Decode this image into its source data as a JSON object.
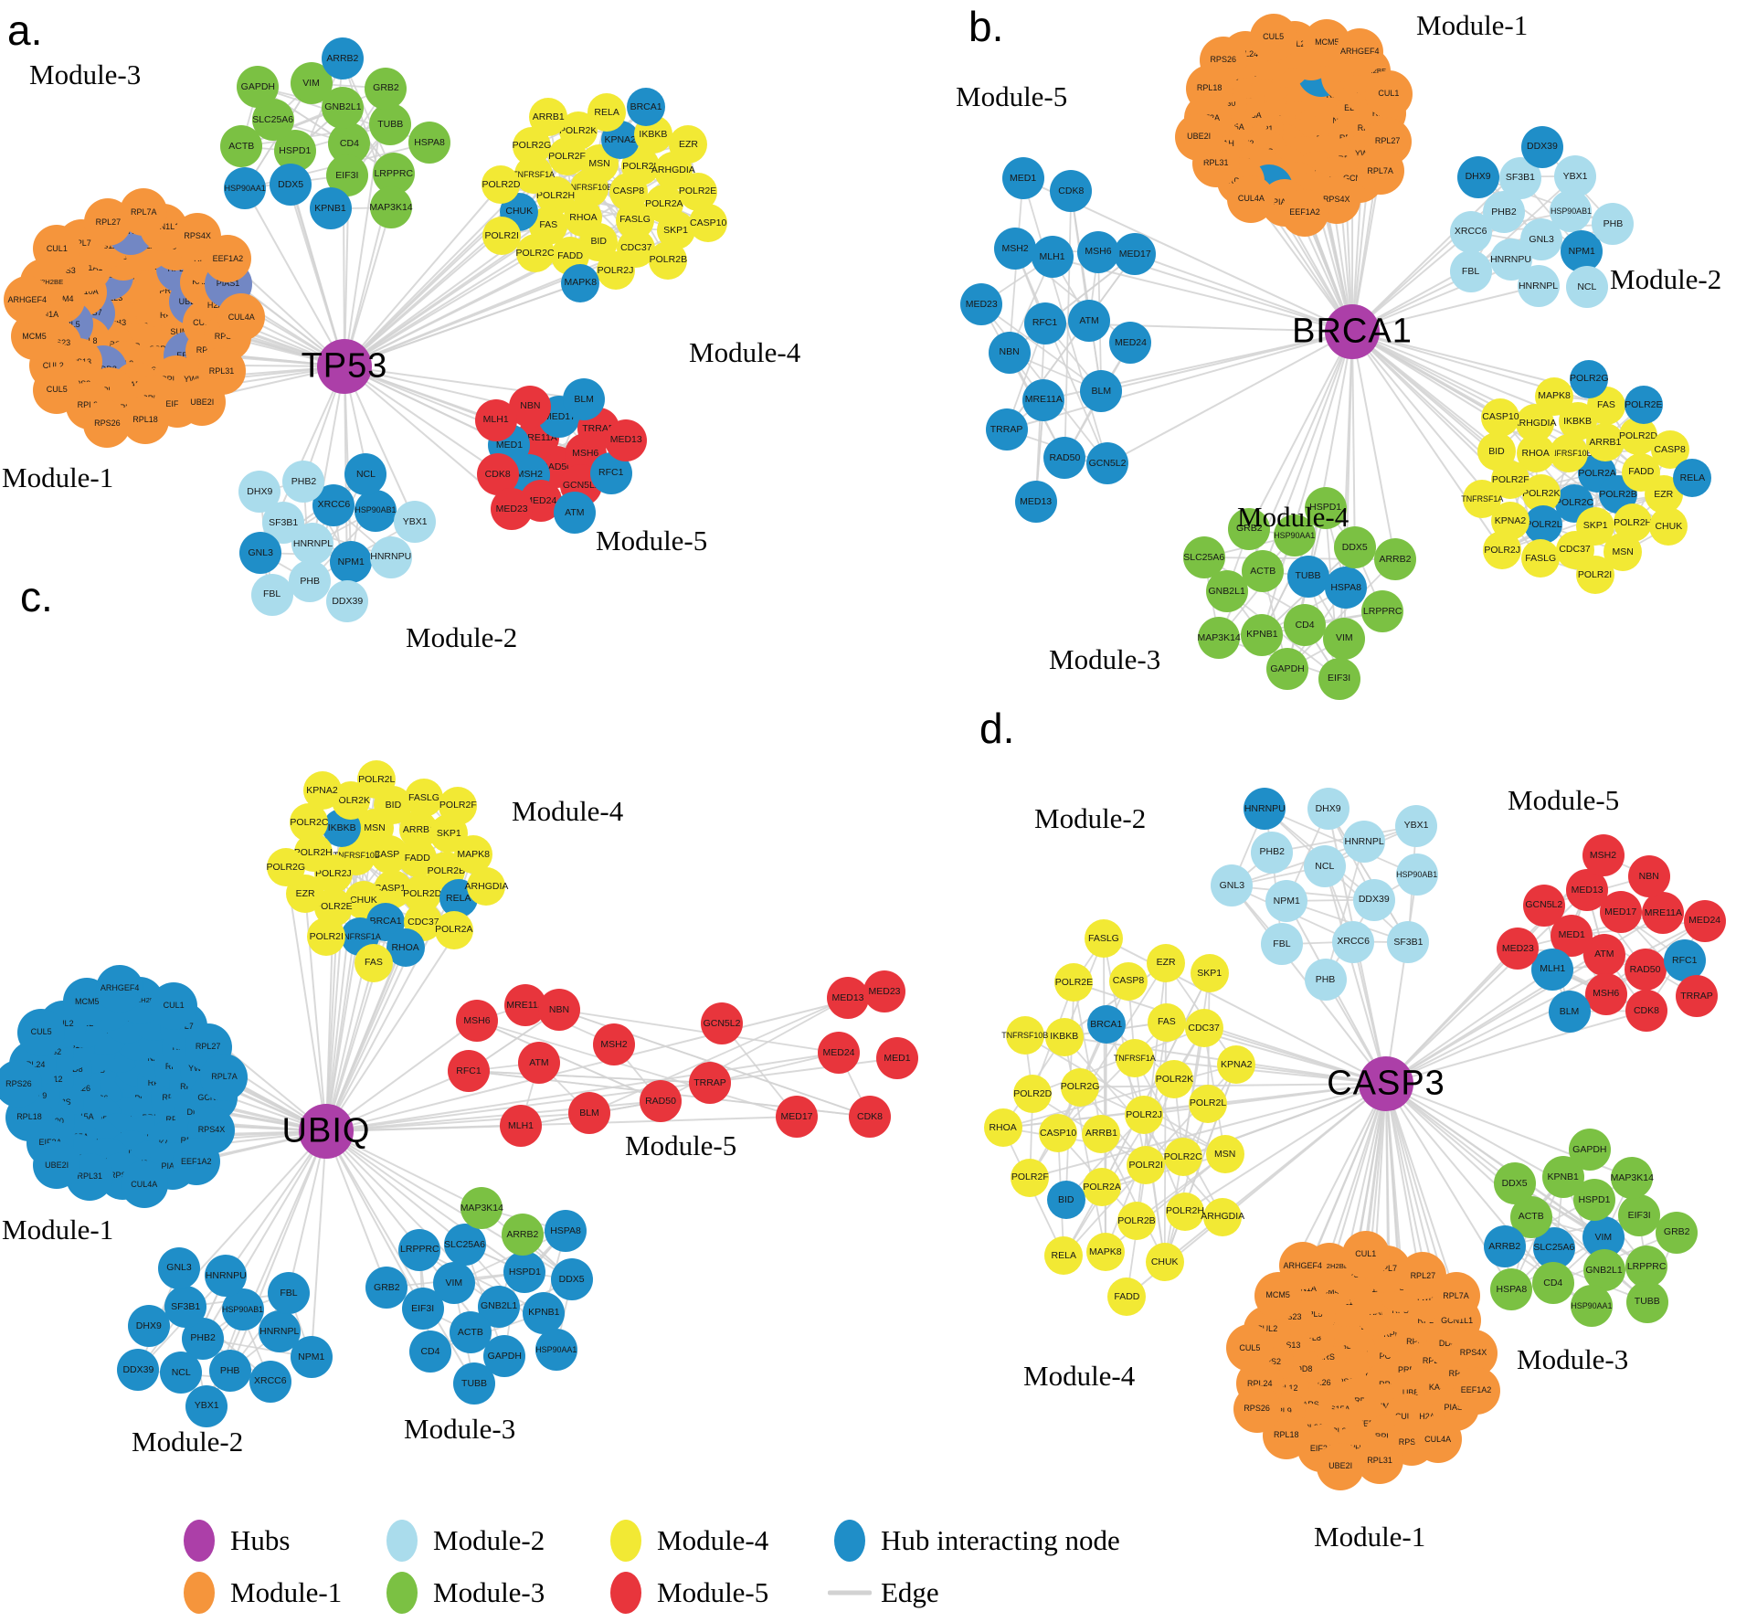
{
  "colors": {
    "hub": "#AC3FA8",
    "module1": "#F5953C",
    "module2": "#AADCEC",
    "module3": "#7BC143",
    "module4": "#F2E934",
    "module5": "#E8353C",
    "interacting": "#1F8EC8",
    "interacting2": "#7287C4",
    "edge": "#D2D2D2"
  },
  "panels": [
    {
      "id": "a",
      "letter": "a.",
      "hub_label": "TP53",
      "modules": [
        {
          "key": "m1",
          "name": "Module-1",
          "default_color": "module1",
          "overrides": {
            "Ubiq": "interacting2",
            "RPL5": "interacting2",
            "RPL11": "interacting2",
            "EEF2": "interacting2",
            "UBE2M": "interacting2",
            "NEDD8": "interacting2",
            "RPS7": "interacting2",
            "NAE1": "interacting2",
            "PIAS1": "interacting2",
            "YWHAG": "interacting2"
          },
          "nodes": [
            "Ubiq",
            "RPS16",
            "SF3B3",
            "PCNA",
            "RPS6",
            "RPL23",
            "RPL6",
            "HARS",
            "RPL29",
            "SSRP1",
            "RPS7",
            "PRPF3",
            "RPL26",
            "NAE1",
            "SUMO3",
            "RPL8",
            "RPL14",
            "RPS15A",
            "RPL10A",
            "UBE2M",
            "NEDD8",
            "RPS20",
            "EEF2",
            "RPL5",
            "RPL11",
            "TARS",
            "EEF1A1",
            "CUL4B",
            "RPS13",
            "RPL21",
            "RPL35A",
            "MCM4",
            "KARS",
            "RPL12",
            "RPS11",
            "RPL13",
            "RPS23",
            "DDB1",
            "RPL30",
            "RPS3",
            "H2AFX",
            "RPS2",
            "YWHAG",
            "YWHAH",
            "SCN1A",
            "RPS8",
            "RPL9",
            "RPL7",
            "RPS14",
            "CUL2",
            "GCN1L1",
            "EIF2A",
            "HIST2H2BE",
            "PIAS1",
            "RPL24",
            "RPL27",
            "RPL31",
            "MCM5",
            "RPS4X",
            "RPL18",
            "CUL1",
            "CUL4A",
            "CUL5",
            "RPL7A",
            "UBE2I",
            "ARHGEF4",
            "EEF1A2",
            "RPS26"
          ]
        },
        {
          "key": "m2",
          "name": "Module-2",
          "default_color": "module2",
          "overrides": {
            "XRCC6": "interacting",
            "NPM1": "interacting",
            "HSP90AB1": "interacting",
            "GNL3": "interacting",
            "NCL": "interacting"
          },
          "nodes": [
            "HNRNPL",
            "XRCC6",
            "NPM1",
            "SF3B1",
            "HSP90AB1",
            "PHB",
            "PHB2",
            "HNRNPU",
            "GNL3",
            "NCL",
            "DDX39",
            "DHX9",
            "YBX1",
            "FBL"
          ]
        },
        {
          "key": "m3",
          "name": "Module-3",
          "default_color": "module3",
          "overrides": {
            "DDX5": "interacting",
            "KPNB1": "interacting",
            "HSP90AA1": "interacting",
            "ARRB2": "interacting"
          },
          "nodes": [
            "CD4",
            "HSPD1",
            "GNB2L1",
            "EIF3I",
            "SLC25A6",
            "TUBB",
            "DDX5",
            "VIM",
            "LRPPRC",
            "ACTB",
            "GRB2",
            "KPNB1",
            "GAPDH",
            "HSPA8",
            "HSP90AA1",
            "ARRB2",
            "MAP3K14"
          ]
        },
        {
          "key": "m4",
          "name": "Module-4",
          "default_color": "module4",
          "overrides": {
            "KPNA2": "interacting",
            "CHUK": "interacting",
            "MAPK8": "interacting",
            "BRCA1": "interacting"
          },
          "nodes": [
            "TNFRSF10B",
            "CASP8",
            "RHOA",
            "MSN",
            "FASLG",
            "POLR2H",
            "POLR2L",
            "BID",
            "POLR2F",
            "POLR2A",
            "FAS",
            "KPNA2",
            "CDC37",
            "TNFRSF1A",
            "ARHGDIA",
            "FADD",
            "POLR2K",
            "SKP1",
            "CHUK",
            "IKBKB",
            "POLR2J",
            "POLR2G",
            "POLR2E",
            "POLR2C",
            "RELA",
            "POLR2B",
            "POLR2D",
            "EZR",
            "MAPK8",
            "ARRB1",
            "CASP10",
            "POLR2I",
            "BRCA1"
          ]
        },
        {
          "key": "m5",
          "name": "Module-5",
          "default_color": "module5",
          "overrides": {
            "MSH2": "interacting",
            "MED17": "interacting",
            "MED1": "interacting",
            "RFC1": "interacting",
            "BLM": "interacting",
            "ATM": "interacting"
          },
          "nodes": [
            "RAD50",
            "MRE11A",
            "MSH6",
            "MSH2",
            "MED17",
            "GCN5L2",
            "MED1",
            "TRRAP",
            "MED24",
            "NBN",
            "RFC1",
            "CDK8",
            "BLM",
            "ATM",
            "MLH1",
            "MED13",
            "MED23"
          ]
        }
      ]
    },
    {
      "id": "b",
      "letter": "b.",
      "hub_label": "BRCA1",
      "modules": [
        {
          "key": "m1",
          "name": "Module-1",
          "default_color": "module1",
          "overrides": {
            "H2AFX": "interacting",
            "RPL5": "interacting"
          },
          "nodes": [
            "Ubiq",
            "RPS16",
            "SF3B3",
            "PCNA",
            "RPS6",
            "RPL23",
            "RPL6",
            "HARS",
            "RPL29",
            "SSRP1",
            "RPS7",
            "PRPF3",
            "RPL26",
            "NAE1",
            "SUMO3",
            "RPL8",
            "RPL14",
            "RPS15A",
            "RPL10A",
            "UBE2M",
            "NEDD8",
            "RPS20",
            "EEF2",
            "RPL5",
            "RPL11",
            "TARS",
            "EEF1A1",
            "CUL4B",
            "RPS13",
            "RPL21",
            "RPL35A",
            "MCM4",
            "KARS",
            "RPL12",
            "RPS11",
            "RPL13",
            "RPS23",
            "DDB1",
            "RPL30",
            "RPS3",
            "H2AFX",
            "RPS2",
            "YWHAG",
            "YWHAH",
            "SCN1A",
            "RPS8",
            "RPL9",
            "RPL7",
            "RPS14",
            "CUL2",
            "GCN1L1",
            "EIF2A",
            "HIST2H2BE",
            "PIAS1",
            "RPL24",
            "RPL27",
            "RPL31",
            "MCM5",
            "RPS4X",
            "RPL18",
            "CUL1",
            "CUL4A",
            "CUL5",
            "RPL7A",
            "UBE2I",
            "ARHGEF4",
            "EEF1A2",
            "RPS26"
          ]
        },
        {
          "key": "m2",
          "name": "Module-2",
          "default_color": "module2",
          "overrides": {
            "NPM1": "interacting",
            "DHX9": "interacting",
            "DDX39": "interacting"
          },
          "nodes": [
            "GNL3",
            "PHB2",
            "HSP90AB1",
            "HNRNPU",
            "SF3B1",
            "NPM1",
            "XRCC6",
            "YBX1",
            "HNRNPL",
            "DHX9",
            "PHB",
            "FBL",
            "DDX39",
            "NCL"
          ]
        },
        {
          "key": "m3",
          "name": "Module-3",
          "default_color": "module3",
          "overrides": {
            "TUBB": "interacting",
            "HSPA8": "interacting"
          },
          "nodes": [
            "TUBB",
            "CD4",
            "ACTB",
            "HSPA8",
            "KPNB1",
            "HSP90AA1",
            "VIM",
            "GNB2L1",
            "DDX5",
            "GAPDH",
            "GRB2",
            "LRPPRC",
            "MAP3K14",
            "HSPD1",
            "EIF3I",
            "SLC25A6",
            "ARRB2"
          ]
        },
        {
          "key": "m4",
          "name": "Module-4",
          "default_color": "module4",
          "overrides": {
            "POLR2A": "interacting",
            "POLR2B": "interacting",
            "POLR2C": "interacting",
            "POLR2L": "interacting",
            "POLR2E": "interacting",
            "POLR2G": "interacting",
            "RELA": "interacting"
          },
          "nodes": [
            "POLR2A",
            "POLR2C",
            "TNFRSF10B",
            "POLR2B",
            "POLR2K",
            "ARRB1",
            "SKP1",
            "RHOA",
            "FADD",
            "POLR2L",
            "IKBKB",
            "POLR2H",
            "POLR2F",
            "POLR2D",
            "CDC37",
            "ARHGDIA",
            "EZR",
            "KPNA2",
            "FAS",
            "MSN",
            "BID",
            "CASP8",
            "FASLG",
            "MAPK8",
            "CHUK",
            "TNFRSF1A",
            "POLR2E",
            "POLR2I",
            "CASP10",
            "RELA",
            "POLR2J",
            "POLR2G"
          ]
        },
        {
          "key": "m5",
          "name": "Module-5",
          "default_color": "interacting",
          "overrides": {},
          "nodes": [
            "RFC1",
            "ATM",
            "MRE11A",
            "MLH1",
            "BLM",
            "NBN",
            "MSH6",
            "RAD50",
            "MSH2",
            "MED24",
            "TRRAP",
            "CDK8",
            "GCN5L2",
            "MED23",
            "MED17",
            "MED13",
            "MED1"
          ]
        }
      ]
    },
    {
      "id": "c",
      "letter": "c.",
      "hub_label": "UBIQ",
      "modules": [
        {
          "key": "m1",
          "name": "Module-1",
          "default_color": "interacting",
          "overrides": {
            "Ubiq": "module1"
          },
          "nodes": [
            "Ubiq",
            "RPS16",
            "SF3B3",
            "PCNA",
            "RPS6",
            "RPL23",
            "RPL6",
            "HARS",
            "RPL29",
            "SSRP1",
            "RPS7",
            "PRPF3",
            "RPL26",
            "NAE1",
            "SUMO3",
            "RPL8",
            "RPL14",
            "RPS15A",
            "RPL10A",
            "UBE2M",
            "NEDD8",
            "RPS20",
            "EEF2",
            "RPL5",
            "RPL11",
            "TARS",
            "EEF1A1",
            "CUL4B",
            "RPS13",
            "RPL21",
            "RPL35A",
            "MCM4",
            "KARS",
            "RPL12",
            "RPS11",
            "RPL13",
            "RPS23",
            "DDB1",
            "RPL30",
            "RPS3",
            "H2AFX",
            "RPS2",
            "YWHAG",
            "YWHAH",
            "SCN1A",
            "RPS8",
            "RPL9",
            "RPL7",
            "RPS14",
            "CUL2",
            "GCN1L1",
            "EIF2A",
            "HIST2H2BE",
            "PIAS1",
            "RPL24",
            "RPL27",
            "RPL31",
            "MCM5",
            "RPS4X",
            "RPL18",
            "CUL1",
            "CUL4A",
            "CUL5",
            "RPL7A",
            "UBE2I",
            "ARHGEF4",
            "EEF1A2",
            "RPS26"
          ]
        },
        {
          "key": "m2",
          "name": "Module-2",
          "default_color": "interacting",
          "overrides": {},
          "nodes": [
            "PHB2",
            "HSP90AB1",
            "PHB",
            "SF3B1",
            "HNRNPL",
            "NCL",
            "HNRNPU",
            "XRCC6",
            "DHX9",
            "FBL",
            "YBX1",
            "GNL3",
            "NPM1",
            "DDX39"
          ]
        },
        {
          "key": "m3",
          "name": "Module-3",
          "default_color": "interacting",
          "overrides": {
            "ARRB2": "module3",
            "MAP3K14": "module3"
          },
          "nodes": [
            "GNB2L1",
            "VIM",
            "HSPD1",
            "ACTB",
            "SLC25A6",
            "KPNB1",
            "EIF3I",
            "ARRB2",
            "GAPDH",
            "LRPPRC",
            "DDX5",
            "CD4",
            "MAP3K14",
            "HSP90AA1",
            "GRB2",
            "HSPA8",
            "TUBB"
          ]
        },
        {
          "key": "m4",
          "name": "Module-4",
          "default_color": "module4",
          "overrides": {
            "BRCA1": "interacting",
            "IKBKB": "interacting",
            "TNFRSF1A": "interacting",
            "RELA": "interacting",
            "RHOA": "interacting"
          },
          "nodes": [
            "CASP8",
            "CASP10",
            "TNFRSF10B",
            "FADD",
            "CHUK",
            "MSN",
            "POLR2D",
            "POLR2J",
            "ARRB1",
            "BRCA1",
            "IKBKB",
            "POLR2B",
            "POLR2E",
            "BID",
            "CDC37",
            "POLR2H",
            "SKP1",
            "TNFRSF1A",
            "POLR2K",
            "RELA",
            "EZR",
            "FASLG",
            "RHOA",
            "POLR2C",
            "MAPK8",
            "POLR2I",
            "POLR2L",
            "POLR2A",
            "POLR2G",
            "POLR2F",
            "FAS",
            "KPNA2",
            "ARHGDIA"
          ]
        },
        {
          "key": "m5",
          "name": "Module-5",
          "default_color": "module5",
          "overrides": {},
          "nodes": [
            "RAD50",
            "MRE11A",
            "MSH6",
            "MSH2",
            "MED17",
            "GCN5L2",
            "MED1",
            "TRRAP",
            "MED24",
            "NBN",
            "RFC1",
            "CDK8",
            "BLM",
            "ATM",
            "MLH1",
            "MED13",
            "MED23"
          ]
        }
      ]
    },
    {
      "id": "d",
      "letter": "d.",
      "hub_label": "CASP3",
      "modules": [
        {
          "key": "m1",
          "name": "Module-1",
          "default_color": "module1",
          "overrides": {},
          "nodes": [
            "Ubiq",
            "RPS16",
            "SF3B3",
            "PCNA",
            "RPS6",
            "RPL23",
            "RPL6",
            "HARS",
            "RPL29",
            "SSRP1",
            "RPS7",
            "PRPF3",
            "RPL26",
            "NAE1",
            "SUMO3",
            "RPL8",
            "RPL14",
            "RPS15A",
            "RPL10A",
            "UBE2M",
            "NEDD8",
            "RPS20",
            "EEF2",
            "RPL5",
            "RPL11",
            "TARS",
            "EEF1A1",
            "CUL4B",
            "RPS13",
            "RPL21",
            "RPL35A",
            "MCM4",
            "KARS",
            "RPL12",
            "RPS11",
            "RPL13",
            "RPS23",
            "DDB1",
            "RPL30",
            "RPS3",
            "H2AFX",
            "RPS2",
            "YWHAG",
            "YWHAH",
            "SCN1A",
            "RPS8",
            "RPL9",
            "RPL7",
            "RPS14",
            "CUL2",
            "GCN1L1",
            "EIF2A",
            "HIST2H2BE",
            "PIAS1",
            "RPL24",
            "RPL27",
            "RPL31",
            "MCM5",
            "RPS4X",
            "RPL18",
            "CUL1",
            "CUL4A",
            "CUL5",
            "RPL7A",
            "UBE2I",
            "ARHGEF4",
            "EEF1A2",
            "RPS26"
          ]
        },
        {
          "key": "m2",
          "name": "Module-2",
          "default_color": "module2",
          "overrides": {
            "HNRNPU": "interacting"
          },
          "nodes": [
            "NCL",
            "DDX39",
            "NPM1",
            "HNRNPL",
            "XRCC6",
            "PHB2",
            "HSP90AB1",
            "FBL",
            "DHX9",
            "SF3B1",
            "GNL3",
            "YBX1",
            "PHB",
            "HNRNPU"
          ]
        },
        {
          "key": "m3",
          "name": "Module-3",
          "default_color": "module3",
          "overrides": {
            "VIM": "interacting",
            "SLC25A6": "interacting",
            "ARRB2": "interacting"
          },
          "nodes": [
            "VIM",
            "SLC25A6",
            "HSPD1",
            "GNB2L1",
            "ACTB",
            "EIF3I",
            "CD4",
            "KPNB1",
            "LRPPRC",
            "ARRB2",
            "MAP3K14",
            "HSP90AA1",
            "DDX5",
            "GRB2",
            "HSPA8",
            "GAPDH",
            "TUBB"
          ]
        },
        {
          "key": "m4",
          "name": "Module-4",
          "default_color": "module4",
          "overrides": {
            "BRCA1": "interacting",
            "BID": "interacting"
          },
          "nodes": [
            "POLR2J",
            "ARRB1",
            "TNFRSF1A",
            "POLR2I",
            "POLR2G",
            "POLR2K",
            "POLR2A",
            "BRCA1",
            "POLR2C",
            "CASP10",
            "FAS",
            "POLR2B",
            "IKBKB",
            "POLR2L",
            "BID",
            "CASP8",
            "POLR2H",
            "POLR2D",
            "CDC37",
            "MAPK8",
            "POLR2E",
            "MSN",
            "POLR2F",
            "EZR",
            "CHUK",
            "TNFRSF10B",
            "KPNA2",
            "RELA",
            "FASLG",
            "ARHGDIA",
            "RHOA",
            "SKP1",
            "FADD"
          ]
        },
        {
          "key": "m5",
          "name": "Module-5",
          "default_color": "module5",
          "overrides": {
            "RFC1": "interacting",
            "MLH1": "interacting",
            "BLM": "interacting"
          },
          "nodes": [
            "ATM",
            "MED17",
            "RAD50",
            "MED1",
            "MRE11A",
            "MSH6",
            "MED13",
            "RFC1",
            "MLH1",
            "NBN",
            "CDK8",
            "GCN5L2",
            "MED24",
            "BLM",
            "MSH2",
            "TRRAP",
            "MED23"
          ]
        }
      ]
    }
  ],
  "legend": {
    "items": [
      {
        "label": "Hubs",
        "color": "hub",
        "shape": "ellipse"
      },
      {
        "label": "Module-1",
        "color": "module1",
        "shape": "ellipse"
      },
      {
        "label": "Module-2",
        "color": "module2",
        "shape": "ellipse"
      },
      {
        "label": "Module-3",
        "color": "module3",
        "shape": "ellipse"
      },
      {
        "label": "Module-4",
        "color": "module4",
        "shape": "ellipse"
      },
      {
        "label": "Module-5",
        "color": "module5",
        "shape": "ellipse"
      },
      {
        "label": "Hub interacting node",
        "color": "interacting",
        "shape": "ellipse"
      },
      {
        "label": "Edge",
        "color": "edge",
        "shape": "line"
      }
    ]
  }
}
